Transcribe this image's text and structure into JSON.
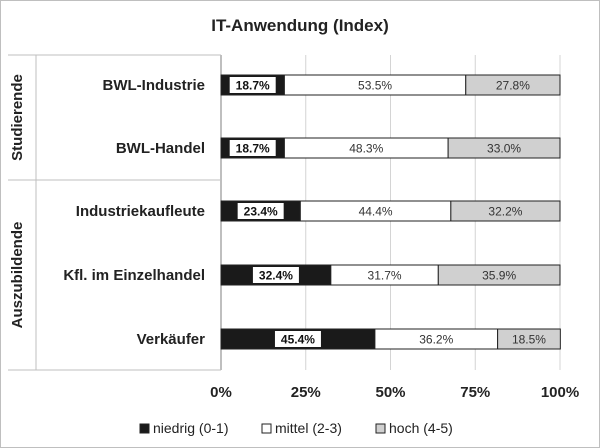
{
  "chart_data": {
    "type": "bar",
    "orientation": "horizontal",
    "stacked": true,
    "percent": true,
    "title": "IT-Anwendung (Index)",
    "groups": [
      {
        "label": "Studierende",
        "categories": [
          "BWL-Industrie",
          "BWL-Handel"
        ]
      },
      {
        "label": "Auszubildende",
        "categories": [
          "Industriekaufleute",
          "Kfl. im Einzelhandel",
          "Verkäufer"
        ]
      }
    ],
    "categories": [
      "BWL-Industrie",
      "BWL-Handel",
      "Industriekaufleute",
      "Kfl. im Einzelhandel",
      "Verkäufer"
    ],
    "series": [
      {
        "name": "niedrig (0-1)",
        "values": [
          18.7,
          18.7,
          23.4,
          32.4,
          45.4
        ],
        "color": "#1a1a1a"
      },
      {
        "name": "mittel (2-3)",
        "values": [
          53.5,
          48.3,
          44.4,
          31.7,
          36.2
        ],
        "color": "#ffffff"
      },
      {
        "name": "hoch (4-5)",
        "values": [
          27.8,
          33.0,
          32.2,
          35.9,
          18.5
        ],
        "color": "#d0d0d0"
      }
    ],
    "data_labels": [
      [
        "18.7%",
        "53.5%",
        "27.8%"
      ],
      [
        "18.7%",
        "48.3%",
        "33.0%"
      ],
      [
        "23.4%",
        "44.4%",
        "32.2%"
      ],
      [
        "32.4%",
        "31.7%",
        "35.9%"
      ],
      [
        "45.4%",
        "36.2%",
        "18.5%"
      ]
    ],
    "x_ticks": [
      0,
      25,
      50,
      75,
      100
    ],
    "x_tick_labels": [
      "0%",
      "25%",
      "50%",
      "75%",
      "100%"
    ],
    "xlim": [
      0,
      100
    ],
    "grid": true,
    "legend_position": "bottom"
  }
}
